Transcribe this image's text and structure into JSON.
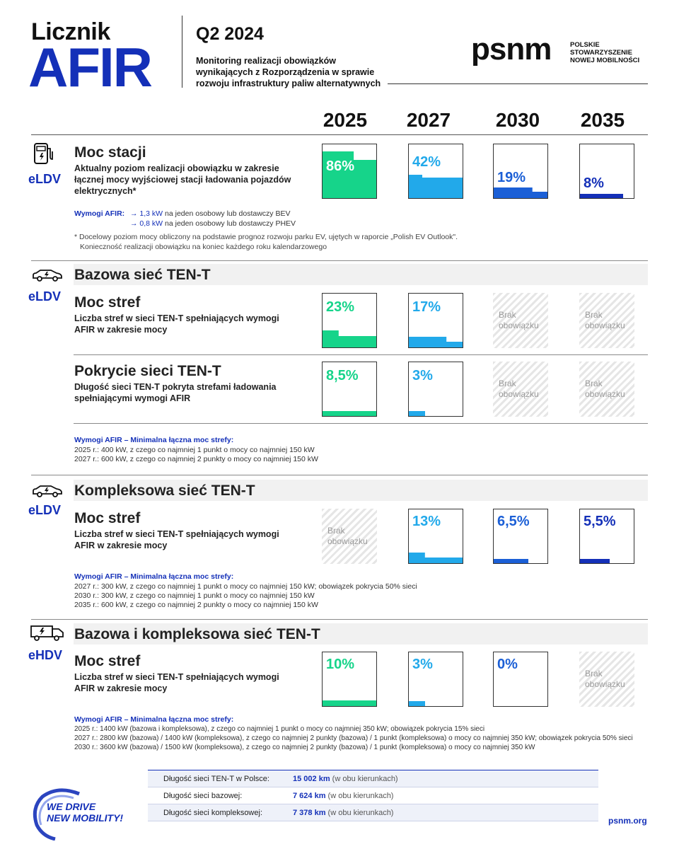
{
  "header": {
    "brand_top": "Licznik",
    "brand_big": "AFIR",
    "quarter": "Q2 2024",
    "subtitle": "Monitoring realizacji obowiązków wynikających z Rozporządzenia w sprawie rozwoju infrastruktury paliw alternatywnych",
    "logo_word": "psnm",
    "logo_org": [
      "POLSKIE",
      "STOWARZYSZENIE",
      "NOWEJ MOBILNOŚCI"
    ]
  },
  "years": [
    "2025",
    "2027",
    "2030",
    "2035"
  ],
  "na_text": [
    "Brak",
    "obowiązku"
  ],
  "colors": {
    "green": "#16d48a",
    "cyan": "#22a9ea",
    "blue": "#1b5fd6",
    "navy": "#1430b8"
  },
  "moc_stacji": {
    "category": "eLDV",
    "icon": "charging-station-icon",
    "title": "Moc stacji",
    "description": "Aktualny poziom realizacji obowiązku w zakresie łącznej mocy wyjściowej stacji ładowania pojazdów elektrycznych*",
    "values": [
      {
        "label": "86%",
        "fraction": 0.86
      },
      {
        "label": "42%",
        "fraction": 0.42
      },
      {
        "label": "19%",
        "fraction": 0.19
      },
      {
        "label": "8%",
        "fraction": 0.08
      }
    ],
    "req_label": "Wymogi AFIR:",
    "req_lines": [
      {
        "arrow": "→",
        "value": "1,3 kW",
        "text": " na jeden osobowy lub dostawczy BEV"
      },
      {
        "arrow": "→",
        "value": "0,8 kW",
        "text": " na jeden osobowy lub dostawczy PHEV"
      }
    ],
    "notes": [
      "* Docelowy poziom mocy obliczony na podstawie prognoz rozwoju parku EV, ujętych w raporcie „Polish EV Outlook\".",
      "Konieczność realizacji obowiązku na koniec każdego roku kalendarzowego"
    ]
  },
  "bazowa": {
    "category": "eLDV",
    "icon": "car-icon",
    "section_title": "Bazowa sieć TEN-T",
    "rows": [
      {
        "title": "Moc stref",
        "description": "Liczba stref w sieci TEN-T spełniających wymogi AFIR w zakresie mocy",
        "values": [
          {
            "label": "23%",
            "fraction": 0.23
          },
          {
            "label": "17%",
            "fraction": 0.17
          },
          null,
          null
        ]
      },
      {
        "title": "Pokrycie sieci TEN-T",
        "description": "Długość sieci TEN-T pokryta strefami ładowania spełniającymi wymogi AFIR",
        "values": [
          {
            "label": "8,5%",
            "fraction": 0.085
          },
          {
            "label": "3%",
            "fraction": 0.03
          },
          null,
          null
        ]
      }
    ],
    "req_label": "Wymogi AFIR – Minimalna łączna moc strefy:",
    "req_lines": [
      "2025 r.: 400 kW, z czego co najmniej 1 punkt o mocy co najmniej 150 kW",
      "2027 r.: 600 kW, z czego co najmniej 2 punkty o mocy co najmniej 150 kW"
    ]
  },
  "kompleksowa": {
    "category": "eLDV",
    "icon": "car-icon",
    "section_title": "Kompleksowa sieć TEN-T",
    "rows": [
      {
        "title": "Moc stref",
        "description": "Liczba stref w sieci TEN-T spełniających wymogi AFIR w zakresie mocy",
        "values": [
          null,
          {
            "label": "13%",
            "fraction": 0.13
          },
          {
            "label": "6,5%",
            "fraction": 0.065
          },
          {
            "label": "5,5%",
            "fraction": 0.055
          }
        ]
      }
    ],
    "req_label": "Wymogi AFIR – Minimalna łączna moc strefy:",
    "req_lines": [
      "2027 r.: 300 kW, z czego co najmniej 1 punkt o mocy co najmniej 150 kW; obowiązek pokrycia 50% sieci",
      "2030 r.: 300 kW, z czego co najmniej 1 punkt o mocy co najmniej 150 kW",
      "2035 r.: 600 kW, z czego co najmniej 2 punkty o mocy co najmniej 150 kW"
    ]
  },
  "hdv": {
    "category": "eHDV",
    "icon": "truck-icon",
    "section_title": "Bazowa i kompleksowa sieć TEN-T",
    "rows": [
      {
        "title": "Moc stref",
        "description": "Liczba stref w sieci TEN-T spełniających wymogi AFIR w zakresie mocy",
        "values": [
          {
            "label": "10%",
            "fraction": 0.1
          },
          {
            "label": "3%",
            "fraction": 0.03
          },
          {
            "label": "0%",
            "fraction": 0
          },
          null
        ]
      }
    ],
    "req_label": "Wymogi AFIR – Minimalna łączna moc strefy:",
    "req_lines": [
      "2025 r.: 1400 kW (bazowa i kompleksowa), z czego co najmniej 1 punkt o mocy co najmniej 350 kW; obowiązek pokrycia 15% sieci",
      "2027 r.: 2800 kW (bazowa) / 1400 kW (kompleksowa), z czego co najmniej 2 punkty (bazowa) / 1 punkt (kompleksowa) o mocy co najmniej 350 kW; obowiązek pokrycia  50% sieci",
      "2030 r.: 3600 kW (bazowa) / 1500 kW (kompleksowa), z czego co najmniej 2 punkty (bazowa) / 1 punkt (kompleksowa) o mocy co najmniej 350 kW"
    ]
  },
  "footer": {
    "table": [
      {
        "key": "Długość sieci TEN-T w Polsce:",
        "value": "15 002 km",
        "note": " (w obu kierunkach)"
      },
      {
        "key": "Długość sieci bazowej:",
        "value": "7 624 km",
        "note": " (w obu kierunkach)"
      },
      {
        "key": "Długość sieci kompleksowej:",
        "value": "7 378 km",
        "note": " (w obu kierunkach)"
      }
    ],
    "slogan": [
      "WE DRIVE",
      "NEW MOBILITY!"
    ],
    "site": "psnm.org"
  }
}
